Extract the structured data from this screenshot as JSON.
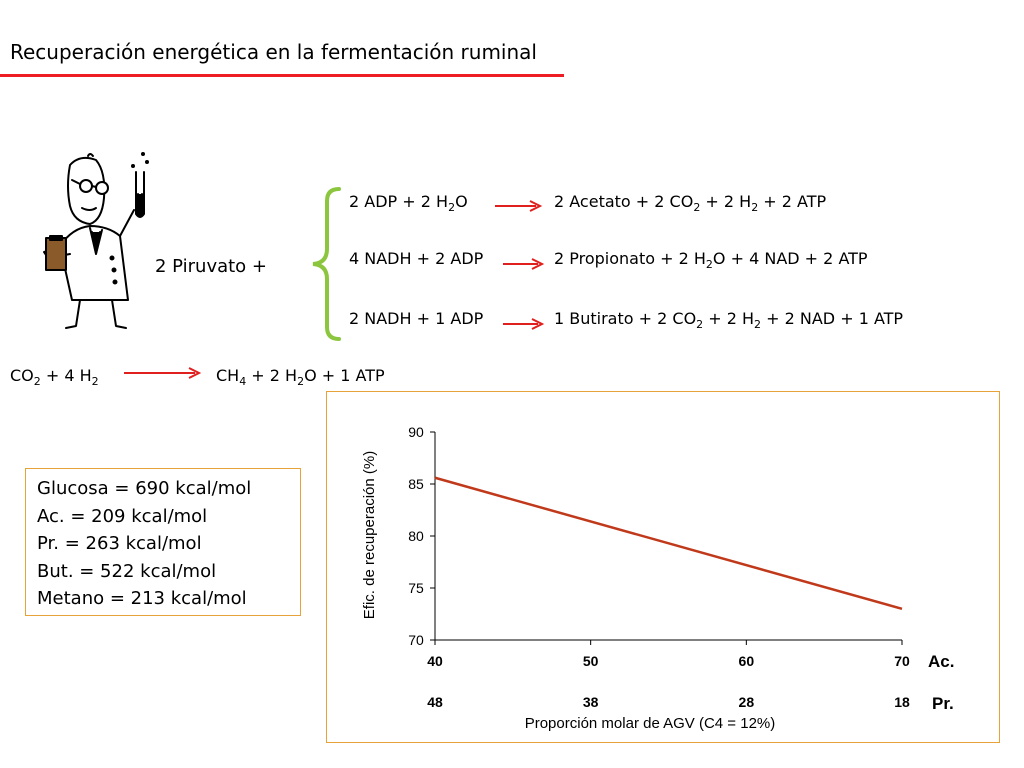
{
  "page": {
    "title": "Recuperación energética en la fermentación ruminal",
    "title_rule_color": "#ee1c25"
  },
  "illustration": {
    "icon": "scientist-with-test-tube-icon"
  },
  "reactions": {
    "substrate": "2 Piruvato +",
    "arrow_color": "#e0201f",
    "r1": {
      "lhs": [
        [
          "2 ADP + 2 H",
          ""
        ],
        [
          "2",
          "sub"
        ],
        [
          "O",
          ""
        ]
      ],
      "rhs": [
        [
          "2 Acetato + 2 CO",
          ""
        ],
        [
          "2",
          "sub"
        ],
        [
          " + 2 H",
          ""
        ],
        [
          "2",
          "sub"
        ],
        [
          " + 2 ATP",
          ""
        ]
      ]
    },
    "r2": {
      "lhs": [
        [
          "4 NADH + 2 ADP",
          ""
        ]
      ],
      "rhs": [
        [
          "2 Propionato + 2 H",
          ""
        ],
        [
          "2",
          "sub"
        ],
        [
          "O + 4 NAD + 2 ATP",
          ""
        ]
      ]
    },
    "r3": {
      "lhs": [
        [
          "2 NADH + 1 ADP",
          ""
        ]
      ],
      "rhs": [
        [
          "1 Butirato + 2 CO",
          ""
        ],
        [
          "2",
          "sub"
        ],
        [
          " + 2 H",
          ""
        ],
        [
          "2",
          "sub"
        ],
        [
          " + 2 NAD + 1 ATP",
          ""
        ]
      ]
    },
    "r4": {
      "lhs": [
        [
          "CO",
          ""
        ],
        [
          "2",
          "sub"
        ],
        [
          " + 4 H",
          ""
        ],
        [
          "2",
          "sub"
        ]
      ],
      "rhs": [
        [
          "CH",
          ""
        ],
        [
          "4",
          "sub"
        ],
        [
          " + 2 H",
          ""
        ],
        [
          "2",
          "sub"
        ],
        [
          "O + 1 ATP",
          ""
        ]
      ]
    }
  },
  "energy_values": [
    "Glucosa = 690 kcal/mol",
    "Ac. = 209 kcal/mol",
    "Pr. = 263 kcal/mol",
    "But. = 522 kcal/mol",
    "Metano = 213 kcal/mol"
  ],
  "box_border_color": "#e8a23a",
  "chart_data": {
    "type": "line",
    "x": [
      40,
      70
    ],
    "x_secondary": [
      48,
      18
    ],
    "xticks": [
      "40",
      "50",
      "60",
      "70"
    ],
    "xticks_secondary": [
      "48",
      "38",
      "28",
      "18"
    ],
    "x_row_label": "Ac.",
    "x_secondary_row_label": "Pr.",
    "xlabel": "Proporción molar de AGV (C4 = 12%)",
    "ylabel": "Efic. de recuperación (%)",
    "yticks": [
      "70",
      "75",
      "80",
      "85",
      "90"
    ],
    "xlim": [
      40,
      70
    ],
    "ylim": [
      70,
      90
    ],
    "series": [
      {
        "values": [
          85.6,
          73.0
        ],
        "color": "#c0391b"
      }
    ],
    "grid": false,
    "legend": "none"
  }
}
